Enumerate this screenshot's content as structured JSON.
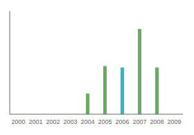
{
  "chart_data": {
    "type": "bar",
    "categories": [
      "2000",
      "2001",
      "2002",
      "2003",
      "2004",
      "2005",
      "2006",
      "2007",
      "2008",
      "2009"
    ],
    "values": [
      0,
      0,
      0,
      0,
      1.5,
      3.5,
      3.4,
      6.2,
      3.4,
      0
    ],
    "colors": [
      "#6aaa64",
      "#6aaa64",
      "#6aaa64",
      "#6aaa64",
      "#6aaa64",
      "#6aaa64",
      "#4aadbb",
      "#6aaa64",
      "#6aaa64",
      "#6aaa64"
    ],
    "ylim": [
      0,
      7.5
    ],
    "grid": false,
    "tick_labels": "x"
  }
}
